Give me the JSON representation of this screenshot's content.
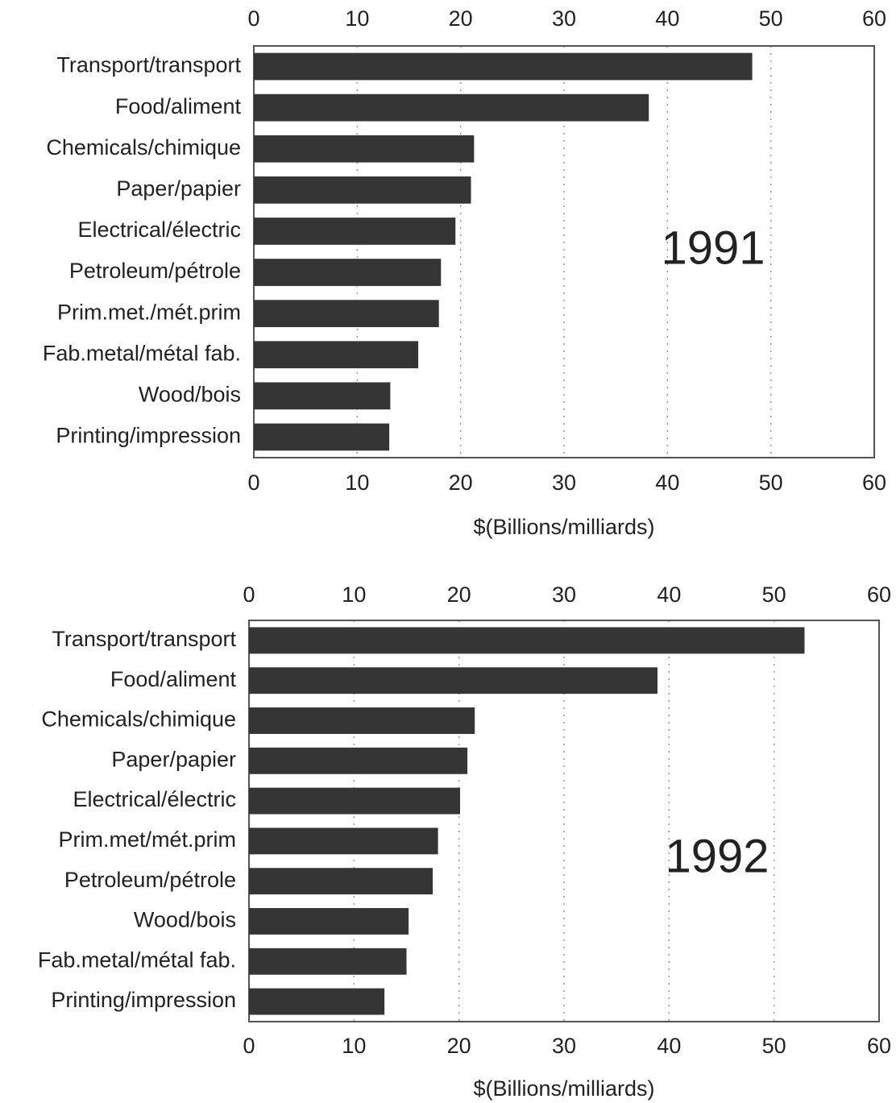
{
  "chart_data": [
    {
      "type": "barh",
      "annotation": "1991",
      "x_label": "$(Billions/milliards)",
      "categories": [
        "Transport/transport",
        "Food/aliment",
        "Chemicals/chimique",
        "Paper/papier",
        "Electrical/électric",
        "Petroleum/pétrole",
        "Prim.met./mét.prim",
        "Fab.metal/métal fab.",
        "Wood/bois",
        "Printing/impression"
      ],
      "values": [
        48.2,
        38.2,
        21.3,
        21.0,
        19.5,
        18.1,
        17.9,
        15.9,
        13.2,
        13.1
      ],
      "color": "#353535",
      "xlim": [
        0,
        60
      ],
      "xticks": [
        0,
        10,
        20,
        30,
        40,
        50,
        60
      ],
      "grid": true
    },
    {
      "type": "barh",
      "annotation": "1992",
      "x_label": "$(Billions/milliards)",
      "categories": [
        "Transport/transport",
        "Food/aliment",
        "Chemicals/chimique",
        "Paper/papier",
        "Electrical/électric",
        "Prim.met/mét.prim",
        "Petroleum/pétrole",
        "Wood/bois",
        "Fab.metal/métal fab.",
        "Printing/impression"
      ],
      "values": [
        52.9,
        38.9,
        21.5,
        20.8,
        20.1,
        18.0,
        17.5,
        15.2,
        15.0,
        12.9
      ],
      "color": "#353535",
      "xlim": [
        0,
        60
      ],
      "xticks": [
        0,
        10,
        20,
        30,
        40,
        50,
        60
      ],
      "grid": true
    }
  ]
}
